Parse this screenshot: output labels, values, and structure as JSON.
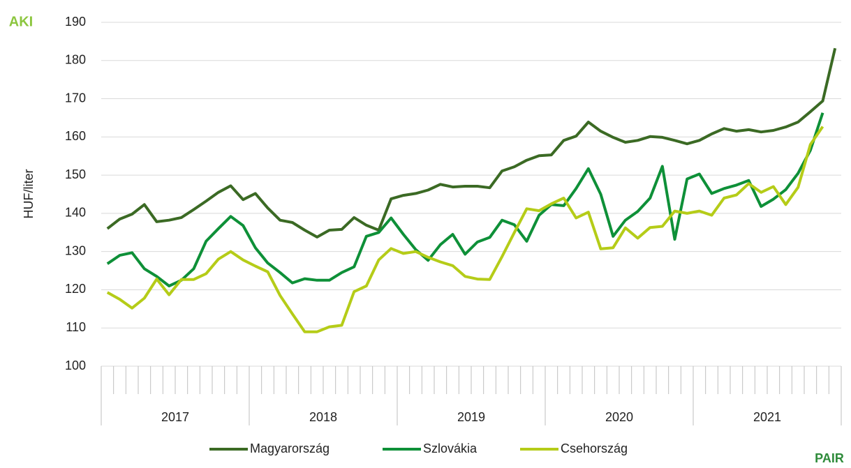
{
  "chart_data": {
    "type": "line",
    "y_label": "HUF/liter",
    "logo_left": "AKI",
    "logo_right": "PAIR",
    "categories": [
      null,
      null,
      null,
      null,
      null,
      null,
      null,
      null,
      null,
      null,
      null,
      null,
      null,
      null,
      null,
      null,
      null,
      null,
      null,
      null,
      null,
      null,
      null,
      null,
      null,
      null,
      null,
      null,
      null,
      null,
      null,
      null,
      null,
      null,
      null,
      null,
      null,
      null,
      null,
      null,
      null,
      null,
      null,
      null,
      null,
      null,
      null,
      null,
      null,
      null,
      null,
      null,
      null,
      null,
      null,
      null,
      null,
      null,
      null,
      null
    ],
    "x_groups": [
      "2017",
      "2018",
      "2019",
      "2020",
      "2021"
    ],
    "ylim": [
      100,
      190
    ],
    "yticks": [
      100,
      110,
      120,
      130,
      140,
      150,
      160,
      170,
      180,
      190
    ],
    "grid": true,
    "legend": "bottom",
    "series": [
      {
        "name": "Magyarország",
        "color": "#3b6a24",
        "values": [
          136.0,
          138.5,
          139.8,
          142.3,
          137.8,
          138.2,
          138.9,
          141.0,
          143.2,
          145.5,
          147.2,
          143.6,
          145.2,
          141.4,
          138.2,
          137.6,
          135.6,
          133.8,
          135.6,
          135.8,
          138.9,
          136.9,
          135.6,
          143.8,
          144.7,
          145.2,
          146.1,
          147.6,
          146.9,
          147.1,
          147.1,
          146.7,
          151.1,
          152.2,
          153.9,
          155.1,
          155.3,
          159.1,
          160.2,
          163.9,
          161.5,
          159.9,
          158.6,
          159.1,
          160.1,
          159.9,
          159.1,
          158.2,
          159.1,
          160.8,
          162.2,
          161.5,
          161.9,
          161.3,
          161.7,
          162.6,
          163.9,
          166.6,
          169.4,
          183.2
        ]
      },
      {
        "name": "Szlovákia",
        "color": "#0e9038",
        "values": [
          126.8,
          129.0,
          129.7,
          125.5,
          123.5,
          121.0,
          122.5,
          125.5,
          132.7,
          136.0,
          139.2,
          136.8,
          131.0,
          127.0,
          124.5,
          121.8,
          122.9,
          122.5,
          122.5,
          124.5,
          126.0,
          134.0,
          135.0,
          138.8,
          134.5,
          130.5,
          127.7,
          131.8,
          134.5,
          129.3,
          132.5,
          133.7,
          138.2,
          137.0,
          132.7,
          139.5,
          142.3,
          142.0,
          146.5,
          151.7,
          145.0,
          134.0,
          138.2,
          140.5,
          144.0,
          152.3,
          133.2,
          149.0,
          150.3,
          145.2,
          146.5,
          147.4,
          148.6,
          141.8,
          143.7,
          146.2,
          150.5,
          156.5,
          166.3,
          null
        ]
      },
      {
        "name": "Csehország",
        "color": "#b5cc18",
        "values": [
          119.3,
          117.5,
          115.2,
          117.8,
          122.8,
          118.7,
          122.7,
          122.7,
          124.2,
          128.0,
          130.0,
          127.8,
          126.2,
          124.7,
          118.5,
          113.7,
          109.0,
          109.0,
          110.3,
          110.7,
          119.5,
          121.0,
          127.8,
          130.8,
          129.5,
          130.0,
          128.5,
          127.3,
          126.3,
          123.5,
          122.8,
          122.7,
          128.7,
          135.0,
          141.2,
          140.7,
          142.5,
          144.0,
          138.8,
          140.3,
          130.7,
          131.0,
          136.2,
          133.5,
          136.3,
          136.6,
          140.6,
          140.0,
          140.6,
          139.5,
          144.0,
          144.8,
          147.8,
          145.5,
          147.0,
          142.3,
          146.8,
          158.0,
          162.7,
          null
        ]
      }
    ]
  }
}
